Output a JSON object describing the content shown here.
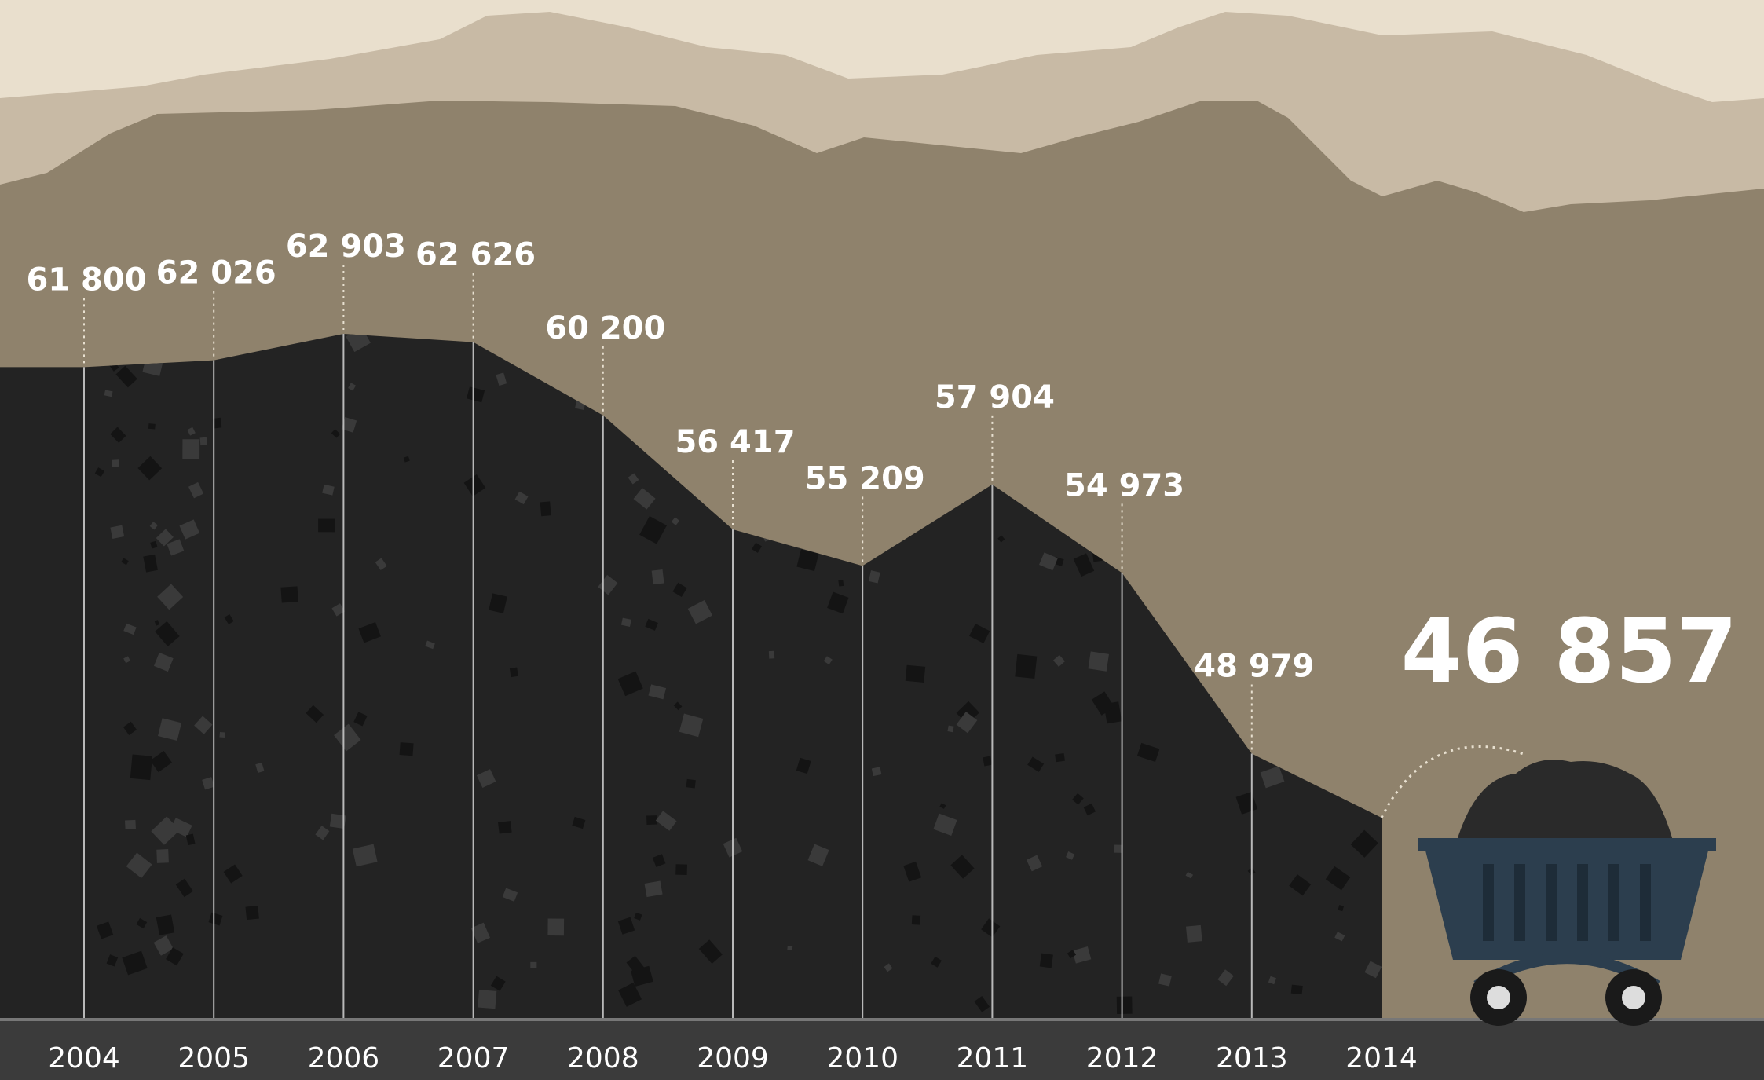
{
  "chart_data": {
    "type": "area",
    "categories": [
      "2004",
      "2005",
      "2006",
      "2007",
      "2008",
      "2009",
      "2010",
      "2011",
      "2012",
      "2013",
      "2014"
    ],
    "values": [
      61800,
      62026,
      62903,
      62626,
      60200,
      56417,
      55209,
      57904,
      54973,
      48979,
      46857
    ],
    "value_labels": [
      "61 800",
      "62 026",
      "62 903",
      "62 626",
      "60 200",
      "56 417",
      "55 209",
      "57 904",
      "54 973",
      "48 979",
      "46 857"
    ],
    "color": "#232323"
  }
}
